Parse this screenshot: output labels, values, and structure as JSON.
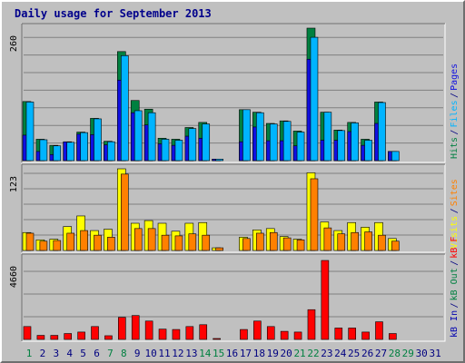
{
  "chart_data": {
    "type": "bar",
    "title": "Daily usage for September 2013",
    "colors": {
      "background": "#c0c0c0",
      "title": "#00008b",
      "pages": "#1010e0",
      "files": "#00b4ff",
      "hits": "#008040",
      "visits": "#ffff00",
      "sites": "#ff8000",
      "kbin": "#0000b0",
      "kbout": "#008040",
      "kbf": "#ff0000",
      "weekend_label": "#008040",
      "weekday_label": "#000080"
    },
    "days": [
      "1",
      "2",
      "3",
      "4",
      "5",
      "6",
      "7",
      "8",
      "9",
      "10",
      "11",
      "12",
      "13",
      "14",
      "15",
      "16",
      "17",
      "18",
      "19",
      "20",
      "21",
      "22",
      "23",
      "24",
      "25",
      "26",
      "27",
      "28",
      "29",
      "30",
      "31"
    ],
    "weekend_days": [
      1,
      7,
      8,
      14,
      15,
      21,
      22,
      28,
      29
    ],
    "panels": [
      {
        "max_label": "260",
        "ylim": [
          0,
          260
        ],
        "side_labels": [
          {
            "text": "Hits",
            "color": "#008040"
          },
          {
            "text": "/",
            "color": "#000080"
          },
          {
            "text": "Files",
            "color": "#00b4ff"
          },
          {
            "text": "/",
            "color": "#000080"
          },
          {
            "text": "Pages",
            "color": "#1010e0"
          }
        ],
        "series": [
          {
            "name": "Hits",
            "values": [
              116,
              42,
              30,
              36,
              56,
              83,
              38,
              214,
              118,
              101,
              44,
              42,
              65,
              75,
              3,
              null,
              100,
              95,
              73,
              78,
              58,
              260,
              95,
              60,
              75,
              42,
              115,
              18,
              null,
              null,
              null
            ]
          },
          {
            "name": "Files",
            "values": [
              115,
              41,
              29,
              36,
              55,
              82,
              37,
              206,
              98,
              94,
              42,
              40,
              63,
              72,
              3,
              null,
              100,
              94,
              72,
              77,
              56,
              242,
              95,
              59,
              74,
              40,
              114,
              18,
              null,
              null,
              null
            ]
          },
          {
            "name": "Pages",
            "values": [
              50,
              18,
              12,
              37,
              52,
              51,
              31,
              158,
              94,
              70,
              33,
              30,
              48,
              44,
              3,
              null,
              37,
              66,
              39,
              39,
              29,
              199,
              40,
              40,
              57,
              30,
              73,
              18,
              null,
              null,
              null
            ]
          }
        ]
      },
      {
        "max_label": "123",
        "ylim": [
          0,
          123
        ],
        "side_labels": [
          {
            "text": "Visits",
            "color": "#ffff00"
          },
          {
            "text": "/",
            "color": "#000080"
          },
          {
            "text": "Sites",
            "color": "#ff8000"
          }
        ],
        "series": [
          {
            "name": "Visits",
            "values": [
              27,
              16,
              17,
              36,
              52,
              30,
              32,
              123,
              41,
              45,
              41,
              29,
              41,
              42,
              4,
              null,
              20,
              31,
              33,
              21,
              17,
              117,
              43,
              30,
              42,
              35,
              42,
              18,
              null,
              null,
              null
            ]
          },
          {
            "name": "Sites",
            "values": [
              26,
              14,
              15,
              26,
              30,
              23,
              20,
              115,
              33,
              33,
              23,
              22,
              25,
              23,
              4,
              null,
              18,
              26,
              27,
              19,
              16,
              108,
              34,
              25,
              27,
              28,
              23,
              14,
              null,
              null,
              null
            ]
          }
        ]
      },
      {
        "max_label": "4660",
        "ylim": [
          0,
          4660
        ],
        "side_labels": [
          {
            "text": "kB In",
            "color": "#0000b0"
          },
          {
            "text": "/",
            "color": "#000080"
          },
          {
            "text": "kB Out",
            "color": "#008040"
          },
          {
            "text": "/",
            "color": "#000080"
          },
          {
            "text": "kB F",
            "color": "#ff0000"
          }
        ],
        "series": [
          {
            "name": "kB F",
            "values": [
              742,
              233,
              233,
              339,
              424,
              742,
              212,
              1271,
              1377,
              1059,
              593,
              572,
              742,
              848,
              42,
              null,
              572,
              1059,
              742,
              466,
              424,
              1716,
              4555,
              657,
              657,
              424,
              1017,
              339,
              null,
              null,
              null
            ]
          }
        ]
      }
    ]
  }
}
